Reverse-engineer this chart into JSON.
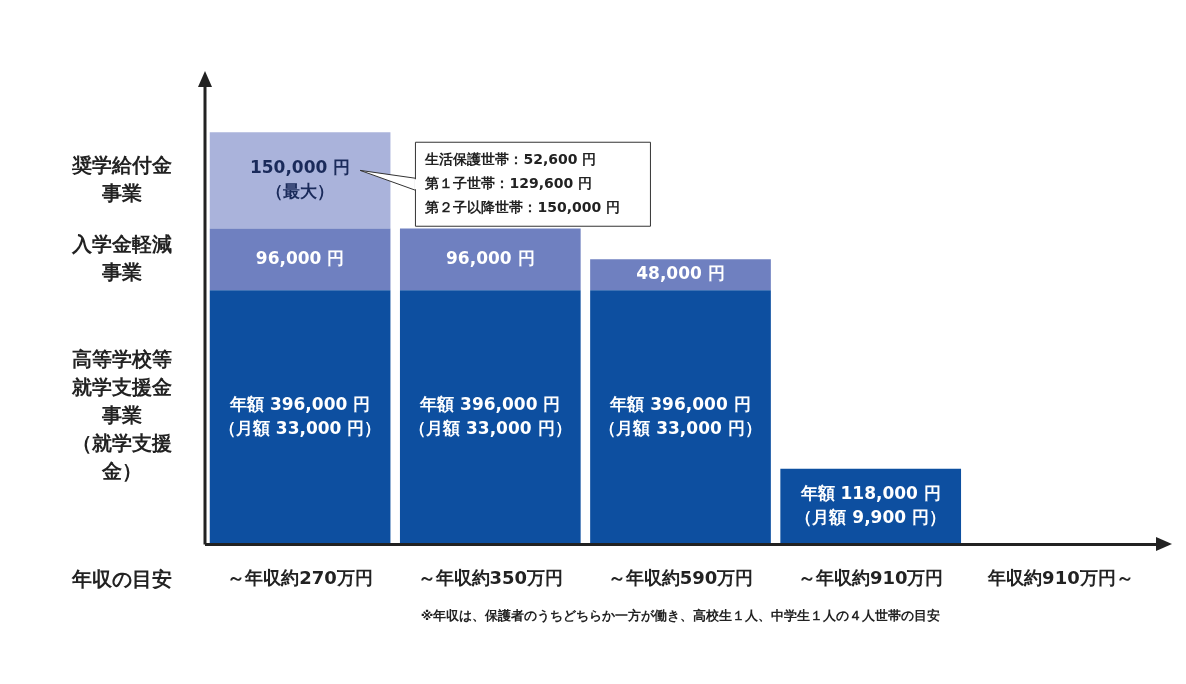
{
  "chart_data": {
    "type": "bar",
    "stacked": true,
    "grid": false,
    "legend": false,
    "xlabel": "年収の目安",
    "categories": [
      "～年収約270万円",
      "～年収約350万円",
      "～年収約590万円",
      "～年収約910万円",
      "年収約910万円～"
    ],
    "series": [
      {
        "name": "高等学校等就学支援金事業（就学支援金）",
        "color": "#0d4fa0",
        "values": [
          396000,
          396000,
          396000,
          118000,
          null
        ],
        "value_labels": [
          "年額 396,000 円（月額 33,000 円）",
          "年額 396,000 円（月額 33,000 円）",
          "年額 396,000 円（月額 33,000 円）",
          "年額 118,000 円（月額 9,900 円）",
          null
        ]
      },
      {
        "name": "入学金軽減事業",
        "color": "#6f80c0",
        "values": [
          96000,
          96000,
          48000,
          null,
          null
        ],
        "value_labels": [
          "96,000 円",
          "96,000 円",
          "48,000 円",
          null,
          null
        ]
      },
      {
        "name": "奨学給付金事業",
        "color": "#aab3db",
        "values": [
          150000,
          null,
          null,
          null,
          null
        ],
        "value_labels": [
          "150,000 円（最大）",
          null,
          null,
          null,
          null
        ]
      }
    ],
    "annotations": [
      "生活保護世帯：52,600 円",
      "第１子世帯：129,600 円",
      "第２子以降世帯：150,000 円",
      "※年収は、保護者のうちどちらか一方が働き、高校生１人、中学生１人の４人世帯の目安"
    ]
  }
}
